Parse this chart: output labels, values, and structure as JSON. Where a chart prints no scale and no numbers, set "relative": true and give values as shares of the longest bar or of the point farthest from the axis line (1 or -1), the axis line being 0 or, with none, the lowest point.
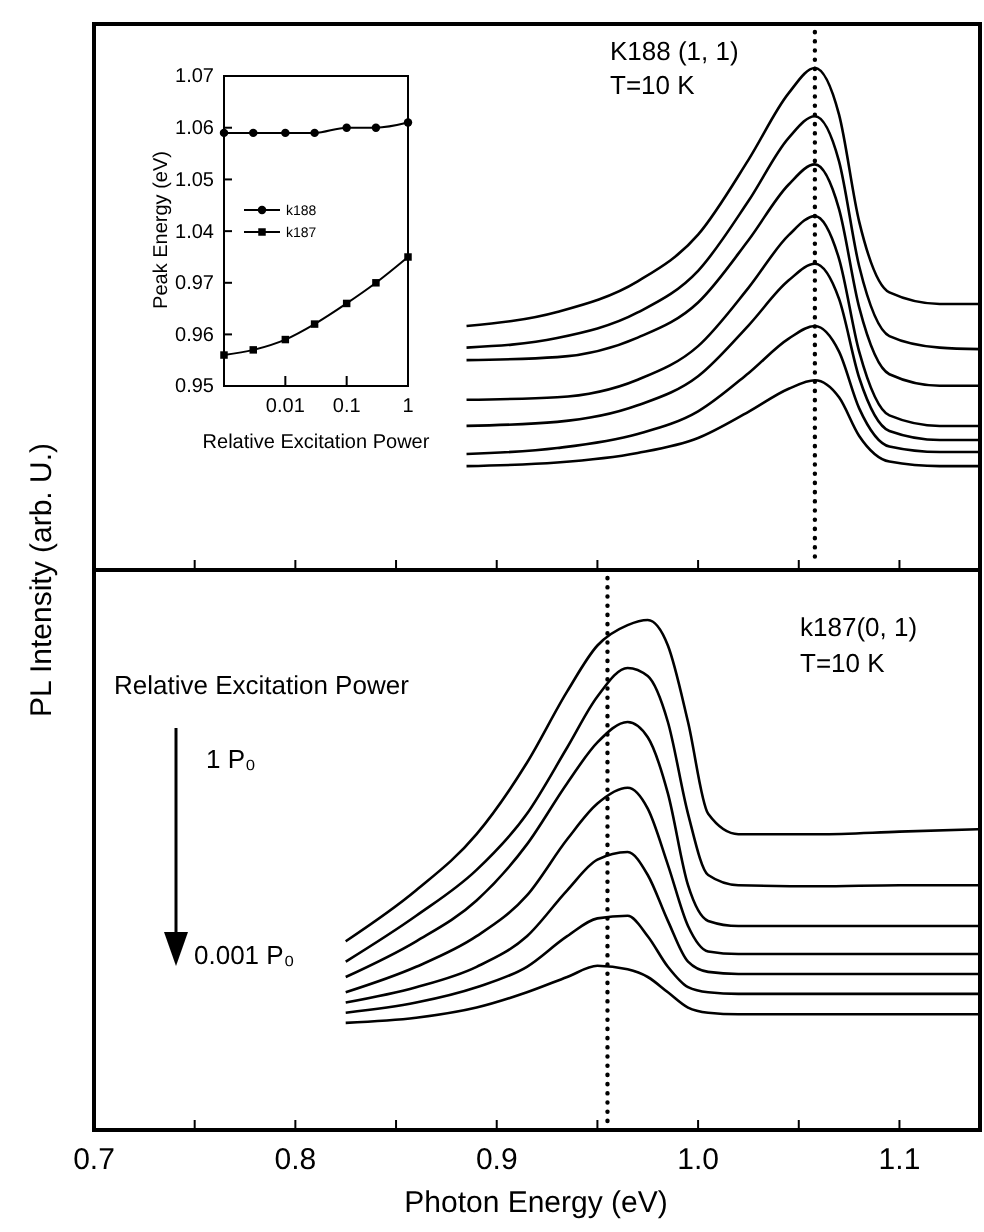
{
  "chart_data": [
    {
      "type": "line",
      "relative": true,
      "ylabel": "PL Intensity (arb. U.)",
      "tick_labels": false,
      "xlim": [
        0.7,
        1.14
      ],
      "xticks": [
        {
          "value": 0.7,
          "label": null
        },
        {
          "value": 0.75,
          "label": null
        },
        {
          "value": 0.8,
          "label": null
        },
        {
          "value": 0.85,
          "label": null
        },
        {
          "value": 0.9,
          "label": null
        },
        {
          "value": 0.95,
          "label": null
        },
        {
          "value": 1,
          "label": null
        },
        {
          "value": 1.05,
          "label": null
        },
        {
          "value": 1.1,
          "label": null
        }
      ],
      "x": [
        0.885,
        0.93,
        0.97,
        1.0,
        1.025,
        1.045,
        1.058,
        1.07,
        1.08,
        1.095,
        1.12,
        1.14
      ],
      "series": [
        {
          "color": "#000000",
          "values": [
            0.486,
            0.514,
            0.575,
            0.668,
            0.817,
            0.95,
            1.0,
            0.907,
            0.694,
            0.553,
            0.53,
            0.53
          ]
        },
        {
          "color": "#000000",
          "values": [
            0.443,
            0.462,
            0.513,
            0.596,
            0.735,
            0.861,
            0.904,
            0.814,
            0.605,
            0.466,
            0.443,
            0.44
          ]
        },
        {
          "color": "#000000",
          "values": [
            0.418,
            0.424,
            0.463,
            0.533,
            0.657,
            0.768,
            0.808,
            0.719,
            0.523,
            0.39,
            0.367,
            0.367
          ]
        },
        {
          "color": "#000000",
          "values": [
            0.339,
            0.344,
            0.379,
            0.446,
            0.562,
            0.667,
            0.705,
            0.62,
            0.435,
            0.308,
            0.287,
            0.287
          ]
        },
        {
          "color": "#000000",
          "values": [
            0.287,
            0.295,
            0.328,
            0.386,
            0.487,
            0.577,
            0.61,
            0.54,
            0.383,
            0.277,
            0.259,
            0.259
          ]
        },
        {
          "color": "#000000",
          "values": [
            0.231,
            0.243,
            0.271,
            0.316,
            0.392,
            0.461,
            0.486,
            0.435,
            0.322,
            0.246,
            0.235,
            0.235
          ]
        },
        {
          "color": "#000000",
          "values": [
            0.207,
            0.214,
            0.233,
            0.263,
            0.315,
            0.361,
            0.378,
            0.344,
            0.267,
            0.216,
            0.207,
            0.207
          ]
        }
      ],
      "ref_lines": [
        {
          "axis": "x",
          "value": 1.058,
          "line_style": "dotted"
        }
      ],
      "annotations": [
        "K188 (1, 1)",
        "T=10 K"
      ]
    },
    {
      "type": "line",
      "ylabel": "Peak Energy (eV)",
      "tick_labels": "y",
      "log": "x",
      "xlim": [
        0.001,
        1
      ],
      "xticks": [
        {
          "value": 0.01,
          "label": null
        },
        {
          "value": 0.1,
          "label": null
        },
        {
          "value": 1,
          "label": null
        }
      ],
      "ylim": [
        1.035,
        1.07
      ],
      "yticks": [
        1.04,
        1.05,
        1.06,
        1.07
      ],
      "legend": "left",
      "x": [
        0.001,
        0.003,
        0.01,
        0.03,
        0.1,
        0.3,
        1
      ],
      "series": [
        {
          "name": "k188",
          "color": "#000000",
          "marker": "circle",
          "values": [
            1.059,
            1.059,
            1.059,
            1.059,
            1.06,
            1.06,
            1.061
          ]
        }
      ]
    },
    {
      "type": "line",
      "xlabel": "Relative Excitation Power",
      "log": "x",
      "xlim": [
        0.001,
        1
      ],
      "xticks": [
        0.01,
        0.1,
        1
      ],
      "ylim": [
        0.95,
        0.975
      ],
      "yticks": [
        0.95,
        0.96,
        0.97
      ],
      "legend": "left",
      "x": [
        0.001,
        0.003,
        0.01,
        0.03,
        0.1,
        0.3,
        1
      ],
      "series": [
        {
          "name": "k187",
          "color": "#000000",
          "marker": "square",
          "values": [
            0.956,
            0.957,
            0.959,
            0.962,
            0.966,
            0.97,
            0.975
          ]
        }
      ]
    },
    {
      "type": "line",
      "relative": true,
      "xlabel": "Photon Energy (eV)",
      "tick_labels": "x",
      "xlim": [
        0.7,
        1.14
      ],
      "xticks": [
        0.7,
        {
          "value": 0.75,
          "label": null
        },
        0.8,
        {
          "value": 0.85,
          "label": null
        },
        0.9,
        {
          "value": 0.95,
          "label": null
        },
        {
          "value": 1,
          "label": "1.0"
        },
        {
          "value": 1.05,
          "label": null
        },
        1.1
      ],
      "x": [
        0.825,
        0.86,
        0.89,
        0.915,
        0.935,
        0.95,
        0.965,
        0.975,
        0.985,
        0.995,
        1.005,
        1.02,
        1.06,
        1.1,
        1.14
      ],
      "series": [
        {
          "color": "#000000",
          "values": [
            0.37,
            0.47,
            0.58,
            0.72,
            0.86,
            0.95,
            0.99,
            1.0,
            0.95,
            0.8,
            0.62,
            0.58,
            0.58,
            0.585,
            0.59
          ]
        },
        {
          "color": "#000000",
          "values": [
            0.33,
            0.42,
            0.51,
            0.62,
            0.75,
            0.85,
            0.906,
            0.89,
            0.8,
            0.62,
            0.5,
            0.48,
            0.478,
            0.48,
            0.48
          ]
        },
        {
          "color": "#000000",
          "values": [
            0.3,
            0.37,
            0.45,
            0.56,
            0.68,
            0.76,
            0.8,
            0.77,
            0.66,
            0.48,
            0.41,
            0.4,
            0.4,
            0.4,
            0.4
          ]
        },
        {
          "color": "#000000",
          "values": [
            0.27,
            0.32,
            0.38,
            0.46,
            0.57,
            0.64,
            0.671,
            0.63,
            0.52,
            0.4,
            0.35,
            0.345,
            0.345,
            0.345,
            0.345
          ]
        },
        {
          "color": "#000000",
          "values": [
            0.25,
            0.28,
            0.32,
            0.38,
            0.47,
            0.53,
            0.545,
            0.5,
            0.41,
            0.33,
            0.31,
            0.306,
            0.306,
            0.306,
            0.306
          ]
        },
        {
          "color": "#000000",
          "values": [
            0.23,
            0.25,
            0.28,
            0.32,
            0.38,
            0.415,
            0.42,
            0.38,
            0.32,
            0.28,
            0.27,
            0.267,
            0.267,
            0.267,
            0.267
          ]
        },
        {
          "color": "#000000",
          "values": [
            0.21,
            0.22,
            0.24,
            0.27,
            0.3,
            0.322,
            0.315,
            0.3,
            0.27,
            0.24,
            0.23,
            0.227,
            0.227,
            0.227,
            0.227
          ]
        }
      ],
      "ref_lines": [
        {
          "axis": "x",
          "value": 0.955,
          "line_style": "dotted"
        }
      ],
      "annotations": [
        "k187(0, 1)",
        "T=10 K",
        "Relative Excitation Power",
        "1 P₀",
        "0.001 P₀"
      ]
    }
  ]
}
